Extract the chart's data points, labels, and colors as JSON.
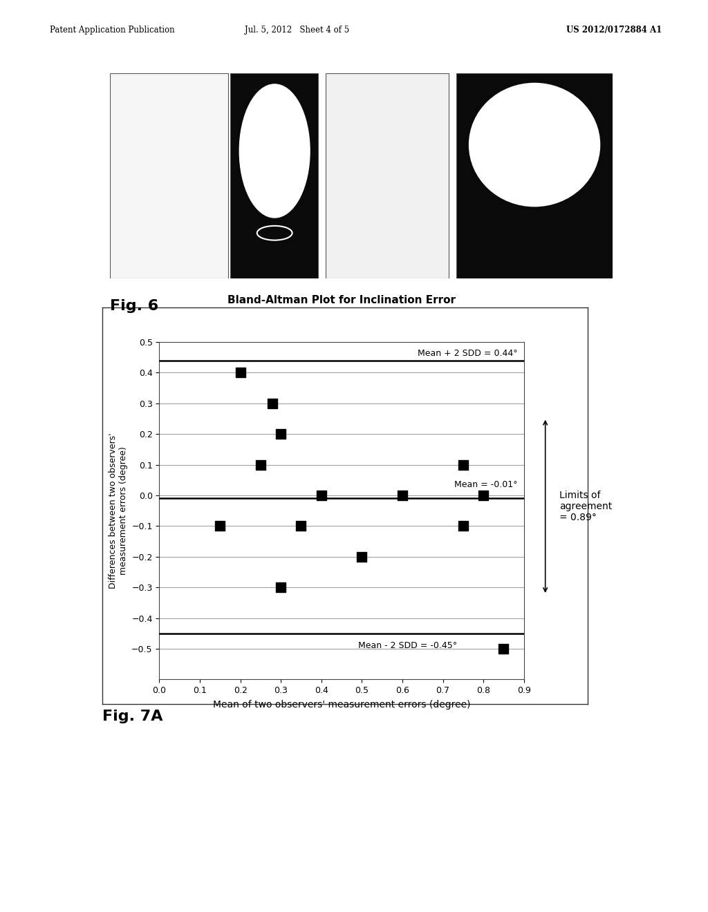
{
  "title": "Bland-Altman Plot for Inclination Error",
  "xlabel": "Mean of two observers' measurement errors (degree)",
  "ylabel": "Differences between two observers'\nmeasurement errors (degree)",
  "scatter_x": [
    0.15,
    0.2,
    0.25,
    0.28,
    0.3,
    0.3,
    0.35,
    0.4,
    0.5,
    0.6,
    0.75,
    0.75,
    0.8,
    0.85
  ],
  "scatter_y": [
    -0.1,
    0.4,
    0.1,
    0.3,
    0.2,
    -0.3,
    -0.1,
    0.0,
    -0.2,
    0.0,
    0.1,
    -0.1,
    0.0,
    -0.5
  ],
  "mean_upper": 0.44,
  "mean_line": -0.01,
  "mean_lower": -0.45,
  "xlim": [
    0,
    0.9
  ],
  "ylim": [
    -0.6,
    0.5
  ],
  "xticks": [
    0,
    0.1,
    0.2,
    0.3,
    0.4,
    0.5,
    0.6,
    0.7,
    0.8,
    0.9
  ],
  "yticks": [
    -0.6,
    -0.5,
    -0.4,
    -0.3,
    -0.2,
    -0.1,
    0,
    0.1,
    0.2,
    0.3,
    0.4,
    0.5
  ],
  "label_upper": "Mean + 2 SDD = 0.44°",
  "label_mean": "Mean = -0.01°",
  "label_lower": "Mean - 2 SDD = -0.45°",
  "label_limits": "Limits of\nagreement\n= 0.89°",
  "fig6_label": "Fig. 6",
  "fig7a_label": "Fig. 7A",
  "header_left": "Patent Application Publication",
  "header_mid": "Jul. 5, 2012   Sheet 4 of 5",
  "header_right": "US 2012/0172884 A1",
  "bg_color": "#ffffff",
  "marker_color": "#000000",
  "line_color_solid": "#000000",
  "grid_line_color": "#888888",
  "img1_color": "#f5f5f5",
  "img2_color": "#0a0a0a",
  "img3_color": "#f0f0f0",
  "img4_color": "#0a0a0a"
}
